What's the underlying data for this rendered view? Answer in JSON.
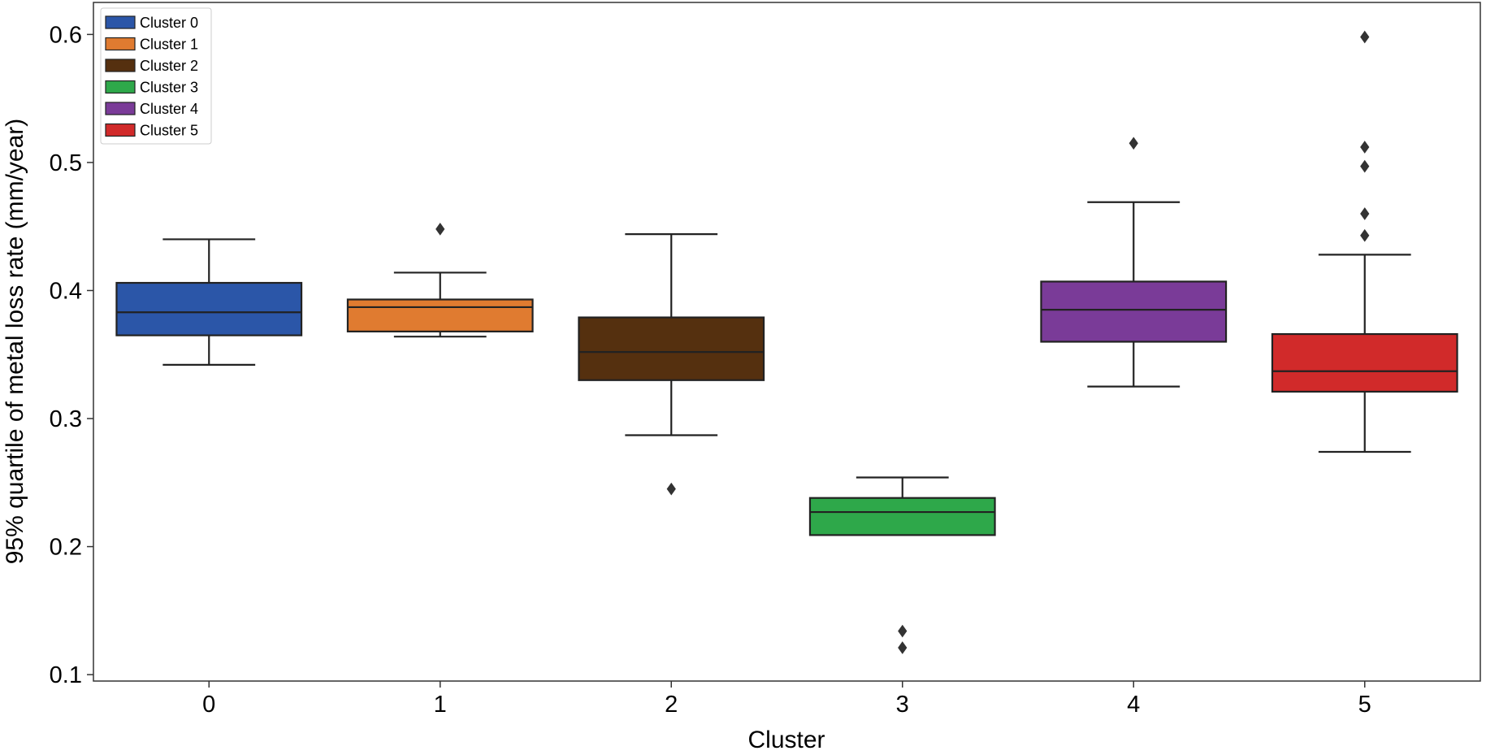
{
  "chart_data": {
    "type": "box",
    "xlabel": "Cluster",
    "ylabel": "95% quartile of metal loss rate (mm/year)",
    "ylim": [
      0.095,
      0.625
    ],
    "yticks": [
      0.1,
      0.2,
      0.3,
      0.4,
      0.5,
      0.6
    ],
    "ytick_labels": [
      "0.1",
      "0.2",
      "0.3",
      "0.4",
      "0.5",
      "0.6"
    ],
    "categories": [
      "0",
      "1",
      "2",
      "3",
      "4",
      "5"
    ],
    "legend_position": "top-left",
    "series": [
      {
        "name": "Cluster 0",
        "color": "#2b56a8",
        "whisker_low": 0.342,
        "q1": 0.365,
        "median": 0.383,
        "q3": 0.406,
        "whisker_high": 0.44,
        "outliers": []
      },
      {
        "name": "Cluster 1",
        "color": "#e07b30",
        "whisker_low": 0.364,
        "q1": 0.368,
        "median": 0.387,
        "q3": 0.393,
        "whisker_high": 0.414,
        "outliers": [
          0.448
        ]
      },
      {
        "name": "Cluster 2",
        "color": "#55300f",
        "whisker_low": 0.287,
        "q1": 0.33,
        "median": 0.352,
        "q3": 0.379,
        "whisker_high": 0.444,
        "outliers": [
          0.245
        ]
      },
      {
        "name": "Cluster 3",
        "color": "#2ea84a",
        "whisker_low": 0.209,
        "q1": 0.209,
        "median": 0.227,
        "q3": 0.238,
        "whisker_high": 0.254,
        "outliers": [
          0.134,
          0.121
        ]
      },
      {
        "name": "Cluster 4",
        "color": "#7a3b98",
        "whisker_low": 0.325,
        "q1": 0.36,
        "median": 0.385,
        "q3": 0.407,
        "whisker_high": 0.469,
        "outliers": [
          0.515
        ]
      },
      {
        "name": "Cluster 5",
        "color": "#d12a2a",
        "whisker_low": 0.274,
        "q1": 0.321,
        "median": 0.337,
        "q3": 0.366,
        "whisker_high": 0.428,
        "outliers": [
          0.598,
          0.512,
          0.497,
          0.46,
          0.443
        ]
      }
    ]
  }
}
